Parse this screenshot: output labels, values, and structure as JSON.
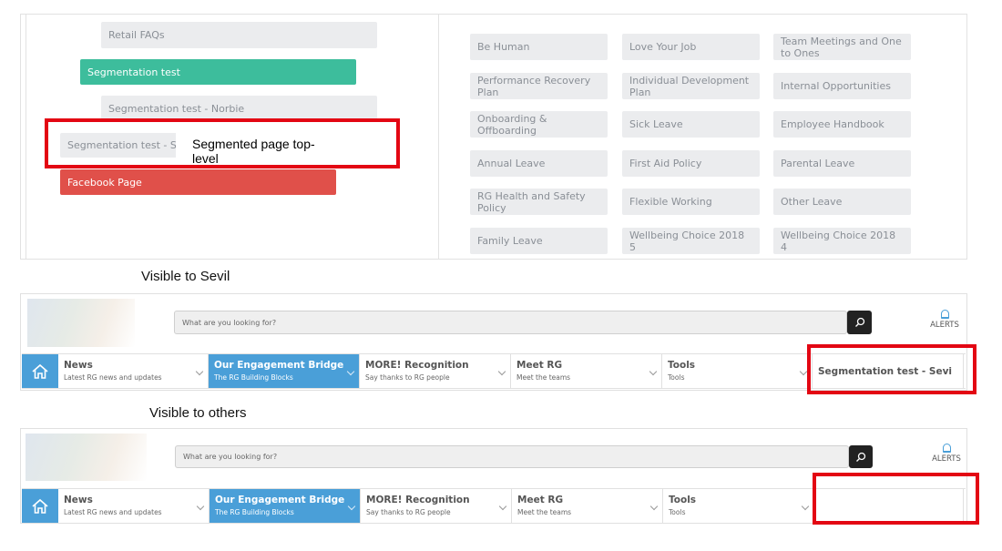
{
  "top_panel": {
    "left_items": [
      {
        "label": "Retail FAQs",
        "color": "#ebecee"
      },
      {
        "label": "Segmentation test",
        "color": "#3dbd9c"
      },
      {
        "label": "Segmentation test - Norbie",
        "color": "#ebecee"
      },
      {
        "label": "Segmentation test - Sevi",
        "color": "#ebecee"
      },
      {
        "label": "Facebook Page",
        "color": "#e0504a"
      }
    ],
    "annotation": "Segmented page top-level",
    "grid": [
      "Be Human",
      "Love Your Job",
      "Team Meetings and One to Ones",
      "Performance Recovery Plan",
      "Individual Development Plan",
      "Internal Opportunities",
      "Onboarding & Offboarding",
      "Sick Leave",
      "Employee Handbook",
      "Annual Leave",
      "First Aid Policy",
      "Parental Leave",
      "RG Health and Safety Policy",
      "Flexible Working",
      "Other Leave",
      "Family Leave",
      "Wellbeing Choice 2018 5",
      "Wellbeing Choice 2018 4"
    ]
  },
  "caption_sevil": "Visible to Sevil",
  "caption_others": "Visible to others",
  "header": {
    "search_placeholder": "What are you looking for?",
    "alerts": "ALERTS",
    "nav": [
      {
        "title": "News",
        "subtitle": "Latest RG news and updates"
      },
      {
        "title": "Our Engagement Bridge",
        "subtitle": "The RG Building Blocks",
        "active": true
      },
      {
        "title": "MORE! Recognition",
        "subtitle": "Say thanks to RG people"
      },
      {
        "title": "Meet RG",
        "subtitle": "Meet the teams"
      },
      {
        "title": "Tools",
        "subtitle": "Tools"
      }
    ],
    "segment_item": "Segmentation test - Sevi"
  },
  "colors": {
    "accent": "#4a9fd8",
    "highlight": "#e30613"
  }
}
